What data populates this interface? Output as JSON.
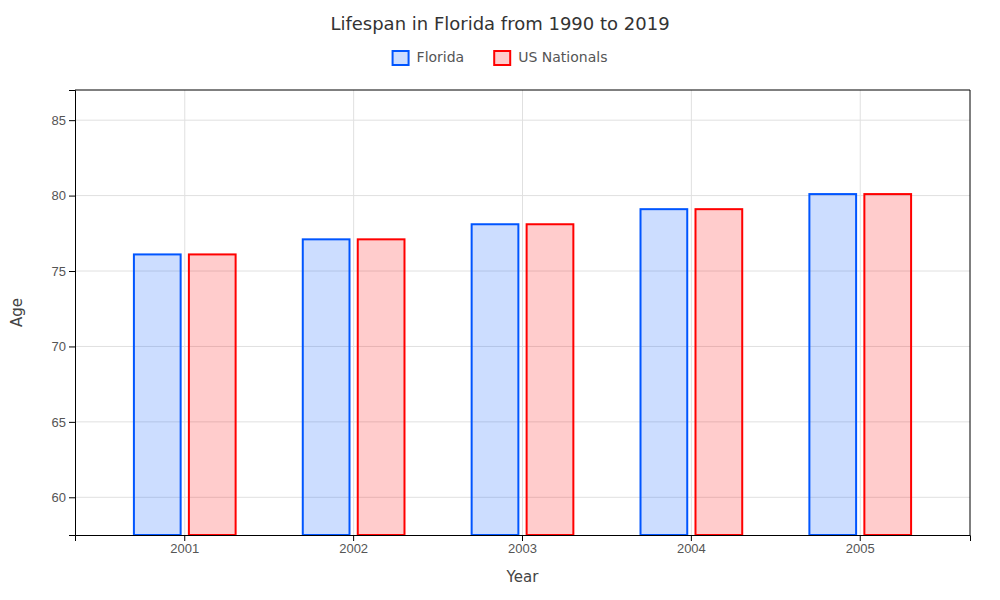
{
  "chart_data": {
    "type": "bar",
    "title": "Lifespan in Florida from 1990 to 2019",
    "x_label": "Year",
    "y_label": "Age",
    "categories": [
      "2001",
      "2002",
      "2003",
      "2004",
      "2005"
    ],
    "series": [
      {
        "name": "Florida",
        "color": "#0055ff",
        "values": [
          76.1,
          77.1,
          78.1,
          79.1,
          80.1
        ]
      },
      {
        "name": "US Nationals",
        "color": "#ff0000",
        "values": [
          76.1,
          77.1,
          78.1,
          79.1,
          80.1
        ]
      }
    ],
    "ylim": [
      57.5,
      87
    ],
    "yticks": [
      60,
      65,
      70,
      75,
      80,
      85
    ],
    "grid": true
  }
}
